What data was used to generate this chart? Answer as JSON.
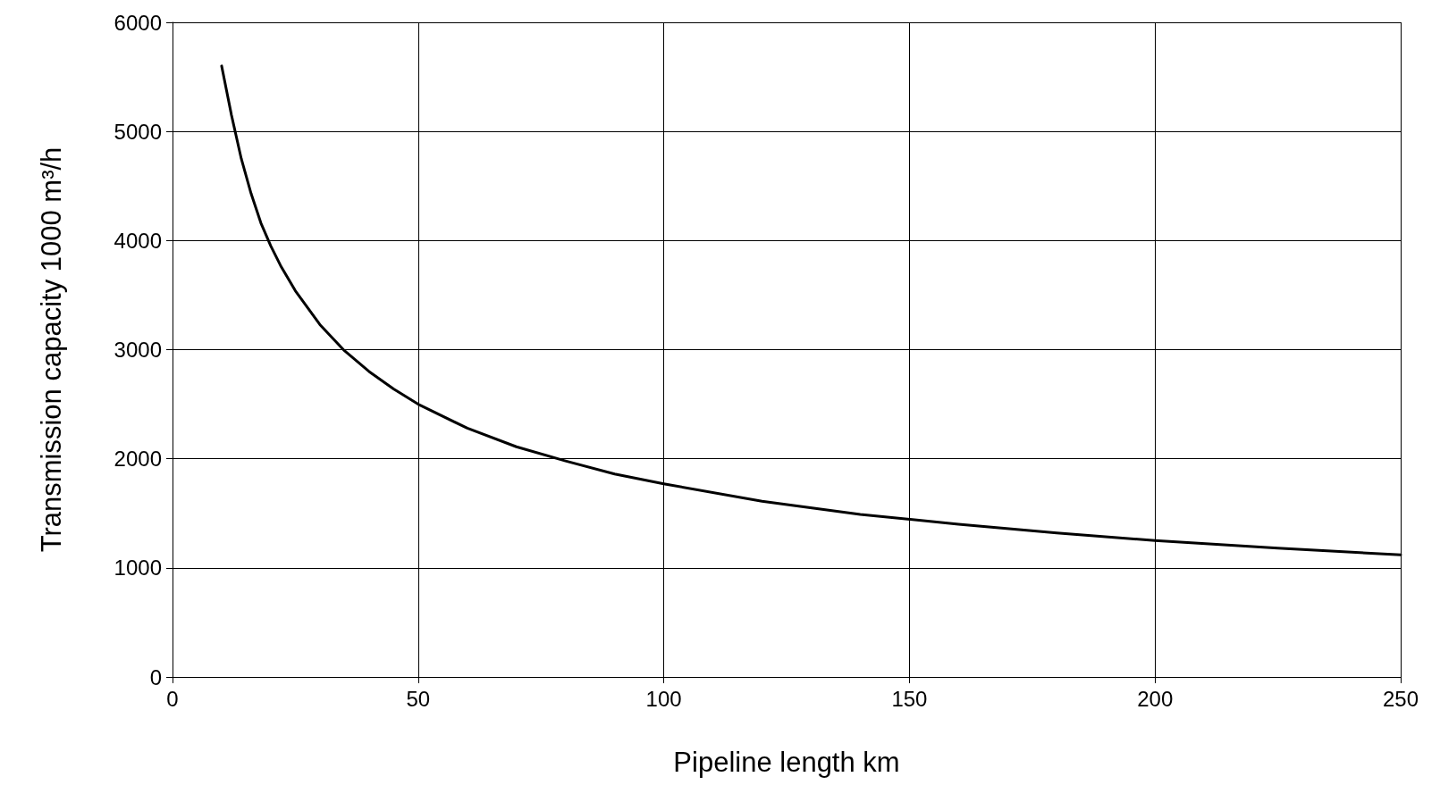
{
  "chart_data": {
    "type": "line",
    "xlabel": "Pipeline length km",
    "ylabel": "Transmission capacity 1000 m³/h",
    "x": [
      10,
      12,
      14,
      16,
      18,
      20,
      22,
      25,
      30,
      35,
      40,
      45,
      50,
      60,
      70,
      80,
      90,
      100,
      120,
      140,
      160,
      180,
      200,
      225,
      250
    ],
    "series": [
      {
        "color": "#000000",
        "values": [
          5600,
          5150,
          4750,
          4430,
          4160,
          3950,
          3770,
          3540,
          3230,
          2990,
          2800,
          2640,
          2500,
          2280,
          2110,
          1980,
          1860,
          1770,
          1610,
          1490,
          1400,
          1320,
          1250,
          1180,
          1120
        ]
      }
    ],
    "xlim": [
      0,
      250
    ],
    "xticks": [
      0,
      50,
      100,
      150,
      200,
      250
    ],
    "ylim": [
      0,
      6000
    ],
    "yticks": [
      0,
      1000,
      2000,
      3000,
      4000,
      5000,
      6000
    ],
    "grid": true,
    "marker": "none",
    "line_style": "solid"
  }
}
